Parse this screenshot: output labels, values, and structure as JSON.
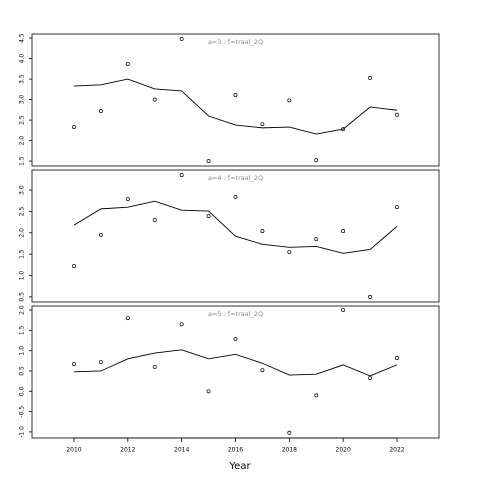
{
  "chart_data": [
    {
      "type": "line",
      "title": "a=3  :  f=traal_2Q",
      "x": [
        2010,
        2011,
        2012,
        2013,
        2014,
        2015,
        2016,
        2017,
        2018,
        2019,
        2020,
        2021,
        2022
      ],
      "xlim": [
        2008.44,
        2023.56
      ],
      "ylim": [
        1.38,
        4.6
      ],
      "yticks": [
        1.5,
        {
          "value": 2,
          "label": "2.0"
        },
        2.5,
        {
          "value": 3,
          "label": "3.0"
        },
        3.5,
        {
          "value": 4,
          "label": "4.0"
        },
        4.5
      ],
      "series": [
        {
          "mode": "markers",
          "color": "#000000",
          "values": [
            2.33,
            2.72,
            3.87,
            3.0,
            4.48,
            1.5,
            3.11,
            2.4,
            2.98,
            1.52,
            2.28,
            3.53,
            2.63
          ]
        },
        {
          "mode": "lines",
          "color": "#000000",
          "values": [
            3.33,
            3.36,
            3.5,
            3.26,
            3.21,
            2.6,
            2.38,
            2.31,
            2.33,
            2.16,
            2.28,
            2.82,
            2.74
          ]
        }
      ]
    },
    {
      "type": "line",
      "title": "a=4  :  f=traal_2Q",
      "x": [
        2010,
        2011,
        2012,
        2013,
        2014,
        2015,
        2016,
        2017,
        2018,
        2019,
        2020,
        2021,
        2022
      ],
      "xlim": [
        2008.44,
        2023.56
      ],
      "ylim": [
        0.38,
        3.47
      ],
      "yticks": [
        0.5,
        {
          "value": 1,
          "label": "1.0"
        },
        1.5,
        {
          "value": 2,
          "label": "2.0"
        },
        2.5,
        {
          "value": 3,
          "label": "3.0"
        }
      ],
      "series": [
        {
          "mode": "markers",
          "color": "#000000",
          "values": [
            1.22,
            1.95,
            2.79,
            2.3,
            3.35,
            2.39,
            2.84,
            2.04,
            1.55,
            1.85,
            2.04,
            0.5,
            2.6
          ]
        },
        {
          "mode": "lines",
          "color": "#000000",
          "values": [
            2.18,
            2.56,
            2.6,
            2.74,
            2.53,
            2.51,
            1.92,
            1.73,
            1.66,
            1.68,
            1.52,
            1.61,
            2.15
          ]
        }
      ]
    },
    {
      "type": "line",
      "title": "a=5  :  f=traal_2Q",
      "x": [
        2010,
        2011,
        2012,
        2013,
        2014,
        2015,
        2016,
        2017,
        2018,
        2019,
        2020,
        2021,
        2022
      ],
      "xlim": [
        2008.44,
        2023.56
      ],
      "ylim": [
        -1.15,
        2.1
      ],
      "xlabel": "Year",
      "xticks": [
        2010,
        2012,
        2014,
        2016,
        2018,
        2020,
        2022
      ],
      "yticks": [
        {
          "value": -1,
          "label": "-1.0"
        },
        -0.5,
        {
          "value": 0,
          "label": "0.0"
        },
        0.5,
        {
          "value": 1,
          "label": "1.0"
        },
        1.5,
        {
          "value": 2,
          "label": "2.0"
        }
      ],
      "series": [
        {
          "mode": "markers",
          "color": "#000000",
          "values": [
            0.67,
            0.72,
            1.8,
            0.6,
            1.65,
            0.0,
            1.29,
            0.52,
            -1.02,
            -0.1,
            2.0,
            0.33,
            0.82
          ]
        },
        {
          "mode": "lines",
          "color": "#000000",
          "values": [
            0.48,
            0.5,
            0.8,
            0.94,
            1.02,
            0.8,
            0.91,
            0.69,
            0.4,
            0.42,
            0.65,
            0.38,
            0.65
          ]
        }
      ]
    }
  ]
}
